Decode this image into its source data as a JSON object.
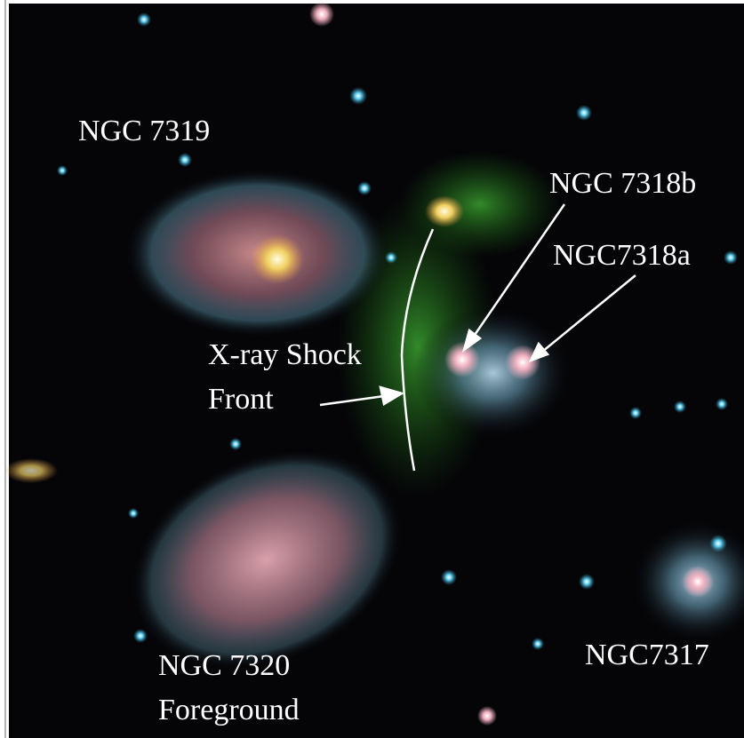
{
  "labels": {
    "ngc7319": "NGC 7319",
    "ngc7318b": "NGC 7318b",
    "ngc7318a": "NGC7318a",
    "shock": [
      "X-ray Shock",
      "Front"
    ],
    "ngc7320": [
      "NGC 7320",
      "Foreground"
    ],
    "ngc7317": "NGC7317"
  }
}
